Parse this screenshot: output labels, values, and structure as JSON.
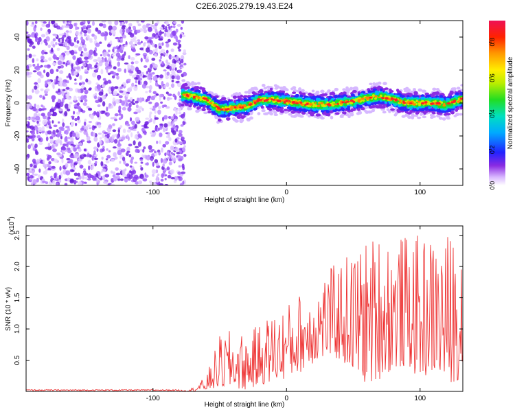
{
  "title": "C2E6.2025.279.19.43.E24",
  "chart_data": [
    {
      "type": "heatmap",
      "xlabel": "Height of straight line (km)",
      "ylabel": "Frequency (Hz)",
      "xlim": [
        -195,
        132
      ],
      "ylim": [
        -50,
        50
      ],
      "xticks": [
        -100,
        0,
        100
      ],
      "yticks": [
        -40,
        -20,
        0,
        20,
        40
      ],
      "noise_region_x": [
        -195,
        -76
      ],
      "ridge": {
        "x": [
          -78,
          -70,
          -60,
          -50,
          -40,
          -30,
          -20,
          -10,
          0,
          10,
          20,
          30,
          40,
          50,
          60,
          70,
          80,
          90,
          100,
          110,
          120,
          130
        ],
        "y": [
          5,
          4,
          2,
          -4,
          -3,
          -2,
          2,
          2,
          1,
          0,
          -1,
          -1,
          0,
          1,
          3,
          4,
          2,
          0,
          0,
          0,
          -1,
          2
        ]
      },
      "colorbar": {
        "label": "Normalized spectral amplitude",
        "min": 0.0,
        "max": 0.92,
        "ticks": [
          "0.0",
          "0.2",
          "0.4",
          "0.6",
          "0.8"
        ]
      }
    },
    {
      "type": "line",
      "xlabel": "Height of straight line (km)",
      "ylabel": "SNR (10 * v/v)",
      "y_multiplier": "(x10",
      "y_multiplier_exp": "4",
      "y_multiplier_close": ")",
      "xlim": [
        -195,
        132
      ],
      "ylim": [
        0,
        2.65
      ],
      "xticks": [
        -100,
        0,
        100
      ],
      "yticks": [
        "0.5",
        "1.0",
        "1.5",
        "2.0",
        "2.5"
      ],
      "color": "#ee3333",
      "series": [
        {
          "name": "SNR",
          "x": [
            -195,
            -80,
            -70,
            -60,
            -50,
            -40,
            -30,
            -20,
            -10,
            0,
            10,
            20,
            30,
            40,
            50,
            60,
            70,
            80,
            90,
            100,
            110,
            120,
            130
          ],
          "envelope_max": [
            0.02,
            0.02,
            0.06,
            0.25,
            0.9,
            1.0,
            0.9,
            1.1,
            1.3,
            1.4,
            1.6,
            1.75,
            1.95,
            2.1,
            2.3,
            2.45,
            2.6,
            2.55,
            2.5,
            2.5,
            2.5,
            2.55,
            2.6
          ],
          "envelope_min": [
            0.0,
            0.0,
            0.0,
            0.02,
            0.05,
            0.05,
            0.02,
            0.1,
            0.15,
            0.2,
            0.3,
            0.45,
            0.55,
            0.5,
            0.3,
            0.1,
            0.2,
            0.35,
            0.4,
            0.2,
            0.3,
            0.1,
            0.2
          ]
        }
      ]
    }
  ],
  "tick_labels": {
    "x": [
      "-100",
      "0",
      "100"
    ],
    "y_top": [
      "-40",
      "-20",
      "0",
      "20",
      "40"
    ],
    "y_bottom": [
      "0.5",
      "1.0",
      "1.5",
      "2.0",
      "2.5"
    ],
    "cbar": [
      "0.0",
      "0.2",
      "0.4",
      "0.6",
      "0.8"
    ]
  }
}
